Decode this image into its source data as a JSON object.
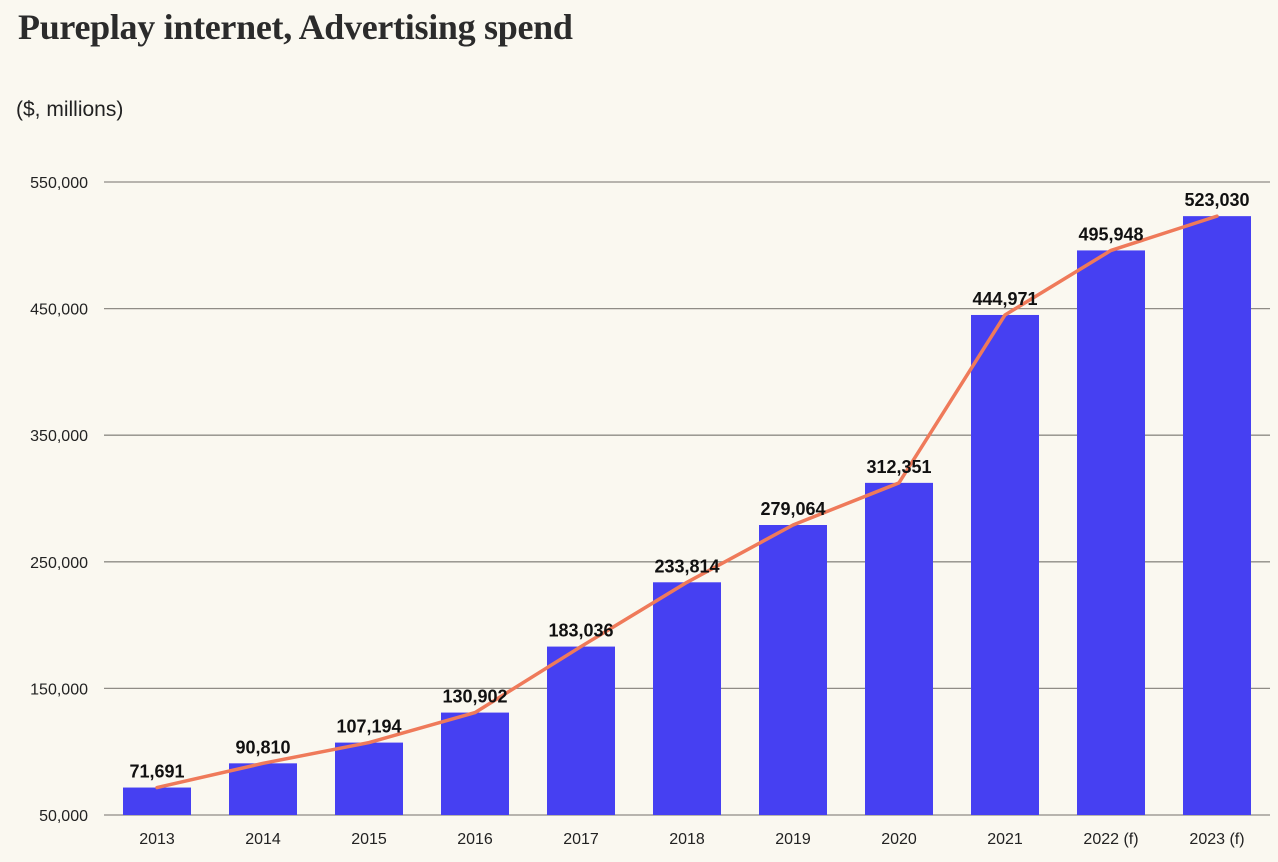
{
  "chart_data": {
    "type": "bar",
    "title": "Pureplay internet, Advertising spend",
    "subtitle": "($, millions)",
    "xlabel": "",
    "ylabel": "",
    "categories": [
      "2013",
      "2014",
      "2015",
      "2016",
      "2017",
      "2018",
      "2019",
      "2020",
      "2021",
      "2022 (f)",
      "2023 (f)"
    ],
    "series": [
      {
        "name": "Advertising spend (bars)",
        "type": "bar",
        "color": "#4640f2",
        "values": [
          71691,
          90810,
          107194,
          130902,
          183036,
          233814,
          279064,
          312351,
          444971,
          495948,
          523030
        ],
        "labels": [
          "71,691",
          "90,810",
          "107,194",
          "130,902",
          "183,036",
          "233,814",
          "279,064",
          "312,351",
          "444,971",
          "495,948",
          "523,030"
        ]
      },
      {
        "name": "Advertising spend (trend line)",
        "type": "line",
        "color": "#ef7a5a",
        "values": [
          71691,
          90810,
          107194,
          130902,
          183036,
          233814,
          279064,
          312351,
          444971,
          495948,
          523030
        ]
      }
    ],
    "ylim": [
      50000,
      550000
    ],
    "yticks": [
      50000,
      150000,
      250000,
      350000,
      450000,
      550000
    ],
    "ytick_labels": [
      "50,000",
      "150,000",
      "250,000",
      "350,000",
      "450,000",
      "550,000"
    ],
    "grid": true,
    "legend": "none"
  }
}
